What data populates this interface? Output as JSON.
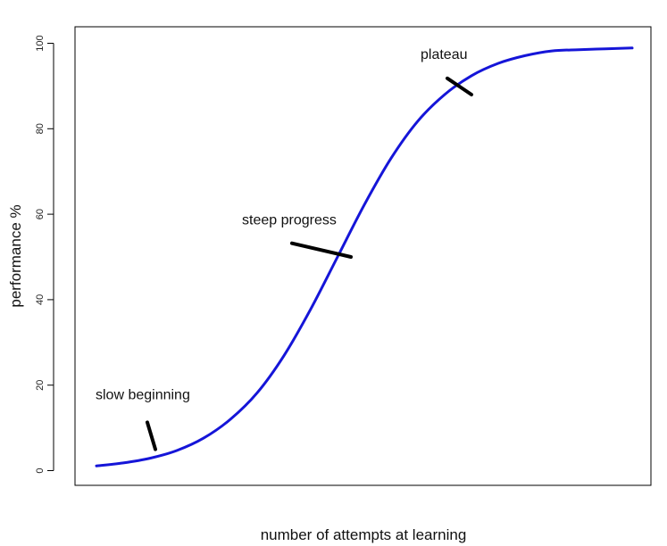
{
  "chart_data": {
    "type": "line",
    "title": "",
    "xlabel": "number of attempts at learning",
    "ylabel": "performance %",
    "xlim": [
      0,
      100
    ],
    "ylim": [
      0,
      100
    ],
    "x_ticks_visible": false,
    "y_ticks": [
      0,
      20,
      40,
      60,
      80,
      100
    ],
    "y_tick_labels": [
      "0",
      "20",
      "40",
      "60",
      "80",
      "100"
    ],
    "grid": false,
    "series": [
      {
        "color": "#1515d8",
        "x": [
          0,
          5,
          10,
          15,
          20,
          25,
          30,
          35,
          40,
          45,
          50,
          55,
          60,
          65,
          70,
          75,
          80,
          85,
          90,
          95,
          100
        ],
        "y": [
          1.1,
          1.8,
          2.9,
          4.7,
          7.6,
          12.0,
          18.2,
          26.9,
          37.8,
          50.0,
          62.2,
          73.1,
          81.8,
          88.0,
          92.4,
          95.3,
          97.1,
          98.2,
          98.5,
          98.7,
          98.9
        ]
      }
    ],
    "annotations": [
      {
        "text": "slow beginning",
        "pointer_from": [
          9.5,
          11.3
        ],
        "pointer_to": [
          11,
          5
        ]
      },
      {
        "text": "steep progress",
        "pointer_from": [
          36.5,
          53.2
        ],
        "pointer_to": [
          47.5,
          50
        ]
      },
      {
        "text": "plateau",
        "pointer_from": [
          65.5,
          91.8
        ],
        "pointer_to": [
          70,
          88
        ]
      }
    ]
  }
}
